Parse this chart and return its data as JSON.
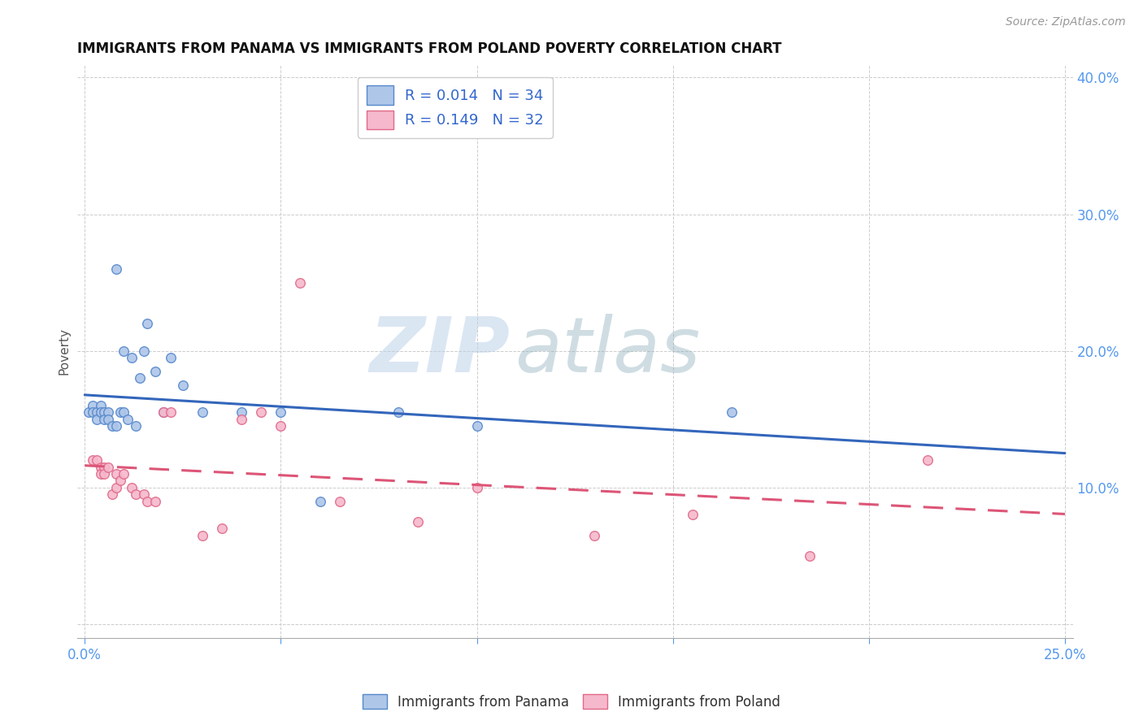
{
  "title": "IMMIGRANTS FROM PANAMA VS IMMIGRANTS FROM POLAND POVERTY CORRELATION CHART",
  "source": "Source: ZipAtlas.com",
  "ylabel": "Poverty",
  "xlim": [
    -0.002,
    0.252
  ],
  "ylim": [
    -0.01,
    0.41
  ],
  "xticks": [
    0.0,
    0.05,
    0.1,
    0.15,
    0.2,
    0.25
  ],
  "yticks": [
    0.0,
    0.1,
    0.2,
    0.3,
    0.4
  ],
  "panama_color": "#aec6e8",
  "poland_color": "#f5b8cc",
  "panama_edge_color": "#5588cc",
  "poland_edge_color": "#e06888",
  "panama_line_color": "#3366bb",
  "poland_line_color": "#dd5577",
  "panama_R": 0.014,
  "panama_N": 34,
  "poland_R": 0.149,
  "poland_N": 32,
  "panama_scatter_x": [
    0.001,
    0.002,
    0.002,
    0.003,
    0.003,
    0.004,
    0.004,
    0.005,
    0.005,
    0.006,
    0.006,
    0.007,
    0.008,
    0.008,
    0.009,
    0.01,
    0.01,
    0.011,
    0.012,
    0.013,
    0.014,
    0.015,
    0.016,
    0.018,
    0.02,
    0.022,
    0.025,
    0.03,
    0.04,
    0.05,
    0.06,
    0.08,
    0.1,
    0.165
  ],
  "panama_scatter_y": [
    0.155,
    0.16,
    0.155,
    0.155,
    0.15,
    0.16,
    0.155,
    0.155,
    0.15,
    0.155,
    0.15,
    0.145,
    0.26,
    0.145,
    0.155,
    0.2,
    0.155,
    0.15,
    0.195,
    0.145,
    0.18,
    0.2,
    0.22,
    0.185,
    0.155,
    0.195,
    0.175,
    0.155,
    0.155,
    0.155,
    0.09,
    0.155,
    0.145,
    0.155
  ],
  "poland_scatter_x": [
    0.002,
    0.003,
    0.004,
    0.004,
    0.005,
    0.005,
    0.006,
    0.007,
    0.008,
    0.008,
    0.009,
    0.01,
    0.012,
    0.013,
    0.015,
    0.016,
    0.018,
    0.02,
    0.022,
    0.03,
    0.035,
    0.04,
    0.045,
    0.05,
    0.055,
    0.065,
    0.085,
    0.1,
    0.13,
    0.155,
    0.185,
    0.215
  ],
  "poland_scatter_y": [
    0.12,
    0.12,
    0.115,
    0.11,
    0.115,
    0.11,
    0.115,
    0.095,
    0.11,
    0.1,
    0.105,
    0.11,
    0.1,
    0.095,
    0.095,
    0.09,
    0.09,
    0.155,
    0.155,
    0.065,
    0.07,
    0.15,
    0.155,
    0.145,
    0.25,
    0.09,
    0.075,
    0.1,
    0.065,
    0.08,
    0.05,
    0.12
  ],
  "watermark_zip": "ZIP",
  "watermark_atlas": "atlas",
  "background_color": "#ffffff",
  "grid_color": "#cccccc",
  "tick_color": "#5599ee"
}
